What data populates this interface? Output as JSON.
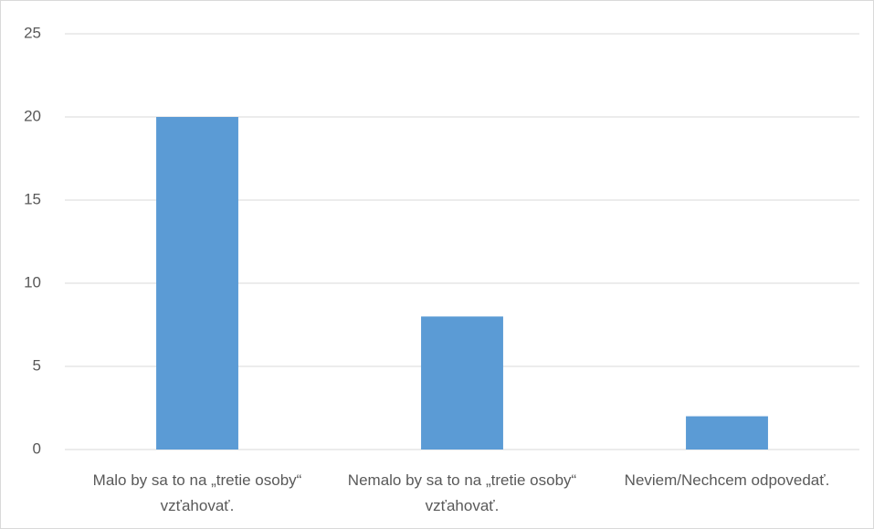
{
  "chart_data": {
    "type": "bar",
    "categories": [
      "Malo by sa to na „tretie osoby“ vzťahovať.",
      "Nemalo by sa to na „tretie osoby“ vzťahovať.",
      "Neviem/Nechcem odpovedať."
    ],
    "values": [
      20,
      8,
      2
    ],
    "color": "#5b9bd5",
    "ylim": [
      0,
      25
    ],
    "yticks": [
      0,
      5,
      10,
      15,
      20,
      25
    ],
    "grid": true
  }
}
